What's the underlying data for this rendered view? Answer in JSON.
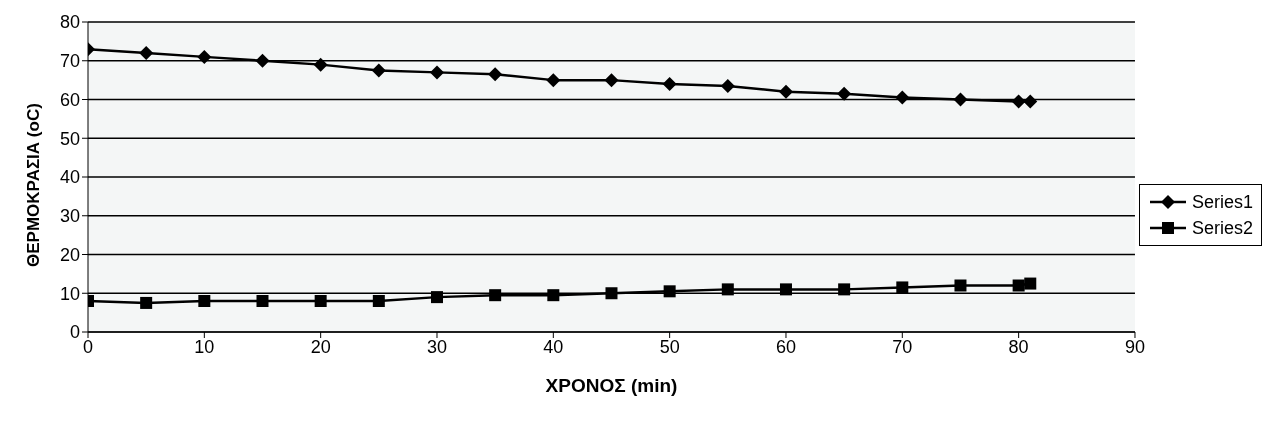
{
  "chart_data": {
    "type": "line",
    "xlabel": "ΧΡΟΝΟΣ (min)",
    "ylabel": "ΘΕΡΜΟΚΡΑΣΙΑ (oC)",
    "x": [
      0,
      5,
      10,
      15,
      20,
      25,
      30,
      35,
      40,
      45,
      50,
      55,
      60,
      65,
      70,
      75,
      80,
      81
    ],
    "series": [
      {
        "name": "Series1",
        "color": "#000000",
        "marker": "diamond",
        "values": [
          73,
          72,
          71,
          70,
          69,
          67.5,
          67,
          66.5,
          65,
          65,
          64,
          63.5,
          62,
          61.5,
          60.5,
          60,
          59.5,
          59.5
        ]
      },
      {
        "name": "Series2",
        "color": "#000000",
        "marker": "square",
        "values": [
          8,
          7.5,
          8,
          8,
          8,
          8,
          9,
          9.5,
          9.5,
          10,
          10.5,
          11,
          11,
          11,
          11.5,
          12,
          12,
          12.5
        ]
      }
    ],
    "xlim": [
      0,
      90
    ],
    "xticks": [
      0,
      10,
      20,
      30,
      40,
      50,
      60,
      70,
      80,
      90
    ],
    "ylim": [
      0,
      80
    ],
    "yticks": [
      0,
      10,
      20,
      30,
      40,
      50,
      60,
      70,
      80
    ],
    "grid": "y",
    "legend": "right",
    "line_style": "solid"
  }
}
